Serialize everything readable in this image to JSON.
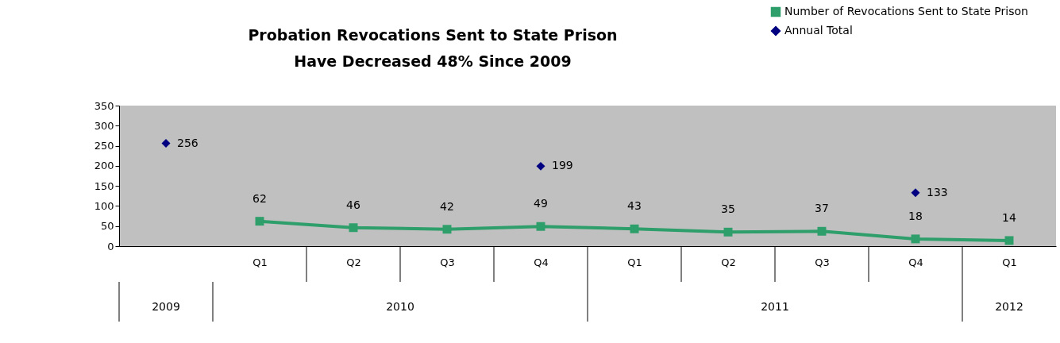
{
  "chart_data": {
    "type": "line",
    "title": "Probation Revocations Sent to State Prison\nHave Decreased 48% Since 2009",
    "categories": [
      null,
      "Q1",
      "Q2",
      "Q3",
      "Q4",
      "Q1",
      "Q2",
      "Q3",
      "Q4",
      "Q1"
    ],
    "series": [
      {
        "name": "Number of Revocations Sent to State Prison",
        "marker": "square",
        "color": "#2e9e6a",
        "values": [
          null,
          62,
          46,
          42,
          49,
          43,
          35,
          37,
          18,
          14
        ]
      },
      {
        "name": "Annual Total",
        "type": "scatter",
        "marker": "diamond",
        "color": "#000080",
        "values": [
          256,
          null,
          null,
          null,
          199,
          null,
          null,
          null,
          133,
          null
        ]
      }
    ],
    "annotations": [
      "2009",
      "2010",
      "2011",
      "2012"
    ],
    "ylim": [
      0,
      350
    ],
    "yticks": [
      0,
      50,
      100,
      150,
      200,
      250,
      300,
      350
    ],
    "grid": false,
    "legend": "top right",
    "data_labels": true
  }
}
